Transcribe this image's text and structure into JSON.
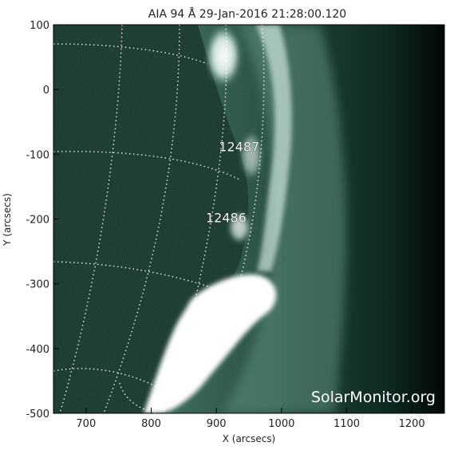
{
  "title": "AIA 94 Å 29-Jan-2016 21:28:00.120",
  "x_axis": {
    "label": "X (arcsecs)",
    "range": [
      650,
      1250
    ],
    "ticks": [
      {
        "value": 700,
        "label": "700"
      },
      {
        "value": 800,
        "label": "800"
      },
      {
        "value": 900,
        "label": "900"
      },
      {
        "value": 1000,
        "label": "1000"
      },
      {
        "value": 1100,
        "label": "1100"
      },
      {
        "value": 1200,
        "label": "1200"
      }
    ]
  },
  "y_axis": {
    "label": "Y (arcsecs)",
    "range": [
      -500,
      100
    ],
    "ticks": [
      {
        "value": 100,
        "label": "100"
      },
      {
        "value": 0,
        "label": "0"
      },
      {
        "value": -100,
        "label": "-100"
      },
      {
        "value": -200,
        "label": "-200"
      },
      {
        "value": -300,
        "label": "-300"
      },
      {
        "value": -400,
        "label": "-400"
      },
      {
        "value": -500,
        "label": "-500"
      }
    ]
  },
  "regions": [
    {
      "number": "12487",
      "x": 935,
      "y": -95
    },
    {
      "number": "12486",
      "x": 915,
      "y": -205
    }
  ],
  "watermark": "SolarMonitor.org",
  "colors": {
    "disk": "#1c3a2f",
    "corona": "#6f9e8c",
    "bright": "#ffffff",
    "space": "#000000"
  }
}
